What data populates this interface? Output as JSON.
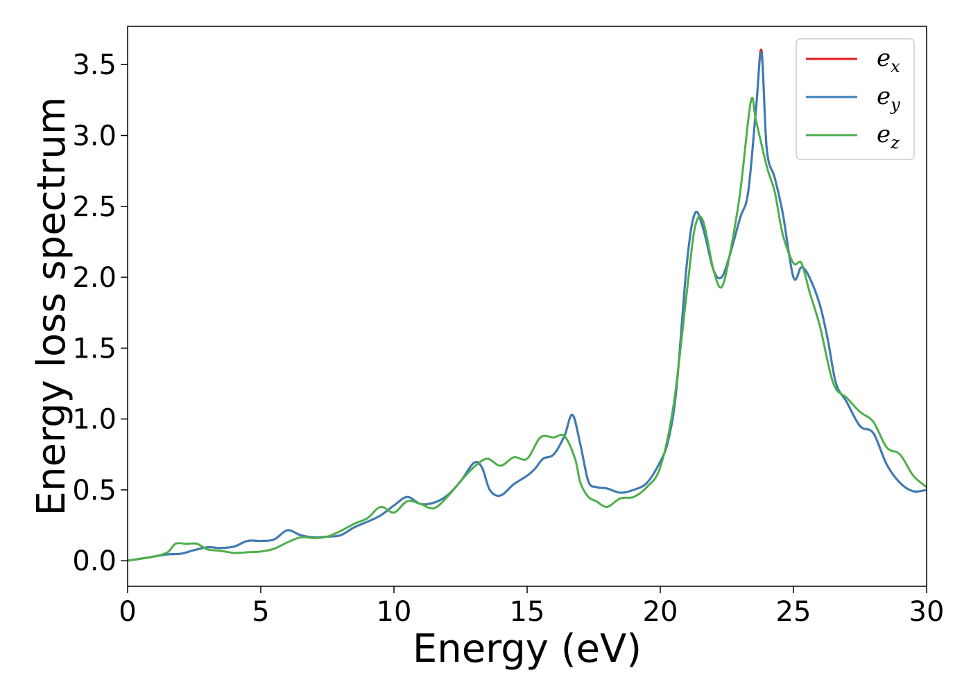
{
  "chart_data": {
    "type": "line",
    "title": "",
    "xlabel": "Energy (eV)",
    "ylabel": "Energy loss spectrum",
    "xlim": [
      0,
      30
    ],
    "ylim": [
      -0.18,
      3.77
    ],
    "xticks": [
      0,
      5,
      10,
      15,
      20,
      25,
      30
    ],
    "yticks": [
      0.0,
      0.5,
      1.0,
      1.5,
      2.0,
      2.5,
      3.0,
      3.5
    ],
    "xtick_labels": [
      "0",
      "5",
      "10",
      "15",
      "20",
      "25",
      "30"
    ],
    "ytick_labels": [
      "0.0",
      "0.5",
      "1.0",
      "1.5",
      "2.0",
      "2.5",
      "3.0",
      "3.5"
    ],
    "grid": false,
    "legend": {
      "placement": "top-right"
    },
    "series": [
      {
        "name": "e_x",
        "label_base": "e",
        "label_sub": "x",
        "color": "#e41a1c",
        "x": [
          0,
          0.5,
          1,
          1.5,
          2,
          2.5,
          3,
          3.5,
          4,
          4.5,
          5,
          5.5,
          6,
          6.5,
          7,
          7.5,
          8,
          8.5,
          9,
          9.5,
          10,
          10.5,
          11,
          11.5,
          12,
          12.5,
          13,
          13.3,
          13.6,
          14,
          14.5,
          15,
          15.3,
          15.6,
          16,
          16.4,
          16.7,
          17,
          17.3,
          17.6,
          18,
          18.5,
          19,
          19.5,
          20,
          20.3,
          20.6,
          21,
          21.3,
          21.6,
          22,
          22.3,
          22.6,
          23,
          23.3,
          23.6,
          23.8,
          24,
          24.3,
          24.6,
          25,
          25.3,
          25.6,
          26,
          26.3,
          26.6,
          27,
          27.5,
          28,
          28.5,
          29,
          29.5,
          30
        ],
        "y": [
          0,
          0.015,
          0.03,
          0.045,
          0.05,
          0.075,
          0.095,
          0.09,
          0.1,
          0.14,
          0.14,
          0.15,
          0.215,
          0.18,
          0.165,
          0.17,
          0.18,
          0.235,
          0.275,
          0.32,
          0.39,
          0.45,
          0.4,
          0.41,
          0.46,
          0.56,
          0.69,
          0.66,
          0.5,
          0.46,
          0.54,
          0.6,
          0.65,
          0.72,
          0.75,
          0.88,
          1.03,
          0.82,
          0.56,
          0.52,
          0.51,
          0.48,
          0.5,
          0.55,
          0.7,
          0.85,
          1.2,
          2.1,
          2.45,
          2.35,
          2.05,
          2.0,
          2.15,
          2.42,
          2.6,
          3.2,
          3.6,
          2.9,
          2.7,
          2.45,
          2.0,
          2.07,
          2.0,
          1.8,
          1.55,
          1.25,
          1.12,
          0.95,
          0.9,
          0.68,
          0.55,
          0.49,
          0.5
        ]
      },
      {
        "name": "e_y",
        "label_base": "e",
        "label_sub": "y",
        "color": "#377eb8",
        "x": [
          0,
          0.5,
          1,
          1.5,
          2,
          2.5,
          3,
          3.5,
          4,
          4.5,
          5,
          5.5,
          6,
          6.5,
          7,
          7.5,
          8,
          8.5,
          9,
          9.5,
          10,
          10.5,
          11,
          11.5,
          12,
          12.5,
          13,
          13.3,
          13.6,
          14,
          14.5,
          15,
          15.3,
          15.6,
          16,
          16.4,
          16.7,
          17,
          17.3,
          17.6,
          18,
          18.5,
          19,
          19.5,
          20,
          20.3,
          20.6,
          21,
          21.3,
          21.6,
          22,
          22.3,
          22.6,
          23,
          23.3,
          23.6,
          23.8,
          24,
          24.3,
          24.6,
          25,
          25.3,
          25.6,
          26,
          26.3,
          26.6,
          27,
          27.5,
          28,
          28.5,
          29,
          29.5,
          30
        ],
        "y": [
          0,
          0.015,
          0.03,
          0.045,
          0.05,
          0.075,
          0.095,
          0.09,
          0.1,
          0.14,
          0.14,
          0.15,
          0.215,
          0.18,
          0.165,
          0.17,
          0.18,
          0.235,
          0.275,
          0.32,
          0.39,
          0.45,
          0.4,
          0.41,
          0.46,
          0.56,
          0.69,
          0.66,
          0.5,
          0.46,
          0.54,
          0.6,
          0.65,
          0.72,
          0.75,
          0.88,
          1.03,
          0.82,
          0.56,
          0.52,
          0.51,
          0.48,
          0.5,
          0.55,
          0.7,
          0.85,
          1.2,
          2.1,
          2.45,
          2.35,
          2.05,
          2.0,
          2.15,
          2.42,
          2.6,
          3.2,
          3.58,
          2.9,
          2.7,
          2.45,
          2.0,
          2.07,
          2.0,
          1.8,
          1.55,
          1.25,
          1.12,
          0.95,
          0.9,
          0.68,
          0.55,
          0.49,
          0.5
        ]
      },
      {
        "name": "e_z",
        "label_base": "e",
        "label_sub": "z",
        "color": "#4daf4a",
        "x": [
          0,
          0.5,
          1,
          1.5,
          1.8,
          2.2,
          2.6,
          3,
          3.5,
          4,
          4.5,
          5,
          5.5,
          6,
          6.5,
          7,
          7.5,
          8,
          8.5,
          9,
          9.5,
          10,
          10.5,
          11,
          11.5,
          12,
          12.5,
          13,
          13.5,
          14,
          14.5,
          15,
          15.5,
          16,
          16.4,
          16.8,
          17,
          17.3,
          17.6,
          18,
          18.5,
          19,
          19.5,
          20,
          20.5,
          21,
          21.3,
          21.6,
          22,
          22.3,
          22.6,
          23,
          23.4,
          23.6,
          24,
          24.3,
          24.6,
          25,
          25.3,
          25.6,
          26,
          26.5,
          27,
          27.5,
          28,
          28.5,
          29,
          29.5,
          30
        ],
        "y": [
          0,
          0.015,
          0.03,
          0.06,
          0.12,
          0.12,
          0.12,
          0.08,
          0.07,
          0.055,
          0.06,
          0.065,
          0.085,
          0.13,
          0.165,
          0.16,
          0.17,
          0.21,
          0.26,
          0.3,
          0.38,
          0.34,
          0.42,
          0.4,
          0.37,
          0.45,
          0.56,
          0.66,
          0.72,
          0.67,
          0.73,
          0.72,
          0.87,
          0.87,
          0.88,
          0.72,
          0.55,
          0.45,
          0.42,
          0.38,
          0.44,
          0.45,
          0.52,
          0.66,
          1.1,
          1.9,
          2.35,
          2.4,
          2.05,
          1.93,
          2.15,
          2.6,
          3.24,
          3.1,
          2.78,
          2.6,
          2.3,
          2.1,
          2.1,
          1.9,
          1.65,
          1.25,
          1.15,
          1.05,
          0.98,
          0.8,
          0.75,
          0.6,
          0.52
        ]
      }
    ]
  }
}
